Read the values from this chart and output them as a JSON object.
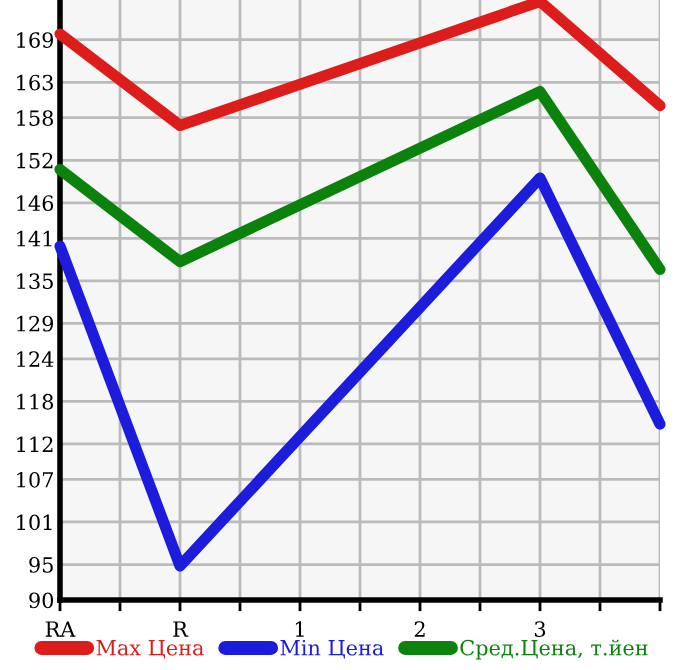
{
  "chart_data": {
    "type": "line",
    "categories": [
      "RA",
      "R",
      "1",
      "2",
      "3",
      null
    ],
    "ylim": [
      90,
      174.6
    ],
    "yticks": [
      90,
      95,
      101,
      107,
      112,
      118,
      124,
      129,
      135,
      141,
      146,
      152,
      158,
      163,
      169
    ],
    "grid": true,
    "legend": "bottom",
    "marker": "none",
    "line_style": "solid",
    "series": [
      {
        "name": "Max Цена",
        "color": "#dd1c1c",
        "values": [
          169.8,
          156.9,
          null,
          null,
          174.4,
          159.7
        ]
      },
      {
        "name": "Min Цена",
        "color": "#1c1cdd",
        "values": [
          139.9,
          94.8,
          null,
          null,
          149.5,
          114.8
        ]
      },
      {
        "name": "Сред.Цена, т.йен",
        "color": "#0b820b",
        "values": [
          150.7,
          137.7,
          null,
          null,
          161.7,
          136.6
        ]
      }
    ]
  }
}
